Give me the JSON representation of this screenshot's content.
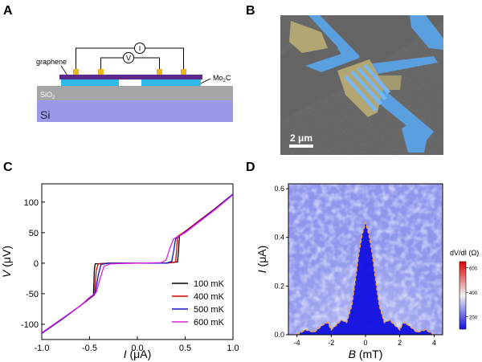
{
  "panels": {
    "a": {
      "letter": "A",
      "labels": {
        "graphene": "graphene",
        "mo2c_base": "Mo",
        "mo2c_sub": "2",
        "mo2c_tail": "C",
        "sio2_base": "SiO",
        "sio2_sub": "2",
        "si": "Si",
        "current_meter": "I",
        "voltage_meter": "V"
      },
      "colors": {
        "graphene_layer": "#5b2a8c",
        "mo2c_layer": "#2fb8e8",
        "contacts": "#f3b31b",
        "sio2": "#a6a6a6",
        "si": "#9a9ae8"
      }
    },
    "b": {
      "letter": "B",
      "scalebar": "2 μm",
      "colors": {
        "background": "#5a5a5a",
        "electrodes": "#5aa0e0",
        "flake": "#b3a672"
      }
    },
    "d": {
      "letter": "D",
      "colorbar_title": "dV/dI (Ω)",
      "colorbar_ticks": [
        "600",
        "400",
        "200"
      ],
      "colors": {
        "high": "#e00000",
        "mid": "#f2f2f2",
        "low": "#1010e0",
        "boundary": "#f0a040"
      }
    }
  },
  "chart_data": [
    {
      "panel": "C",
      "type": "line",
      "xlabel_sym": "I",
      "xlabel_unit": " (μA)",
      "ylabel_sym": "V",
      "ylabel_unit": " (μV)",
      "xlim": [
        -1.0,
        1.0
      ],
      "ylim": [
        -125,
        130
      ],
      "xticks": [
        -1.0,
        -0.5,
        0.0,
        0.5,
        1.0
      ],
      "xtick_labels": [
        "-1.0",
        "-0.5",
        "0.0",
        "0.5",
        "1.0"
      ],
      "yticks": [
        -100,
        -50,
        0,
        50,
        100
      ],
      "ytick_labels": [
        "-100",
        "-50",
        "0",
        "50",
        "100"
      ],
      "legend_position": "bottom-right",
      "series": [
        {
          "name": "100 mK",
          "color": "#000000",
          "x": [
            -1.0,
            -0.8,
            -0.6,
            -0.5,
            -0.46,
            -0.45,
            -0.44,
            -0.3,
            0.0,
            0.3,
            0.42,
            0.43,
            0.44,
            0.5,
            0.6,
            0.8,
            1.0
          ],
          "y": [
            -115,
            -93,
            -70,
            -58,
            -52,
            -10,
            -1,
            0,
            0,
            0,
            2,
            20,
            45,
            52,
            64,
            88,
            113
          ]
        },
        {
          "name": "400 mK",
          "color": "#d80000",
          "x": [
            -1.0,
            -0.8,
            -0.6,
            -0.5,
            -0.45,
            -0.43,
            -0.41,
            -0.3,
            0.0,
            0.3,
            0.4,
            0.41,
            0.42,
            0.5,
            0.6,
            0.8,
            1.0
          ],
          "y": [
            -115,
            -93,
            -70,
            -58,
            -52,
            -12,
            -1,
            0,
            0,
            0,
            2,
            20,
            44,
            52,
            64,
            88,
            113
          ]
        },
        {
          "name": "500 mK",
          "color": "#1010c8",
          "x": [
            -1.0,
            -0.8,
            -0.6,
            -0.5,
            -0.44,
            -0.41,
            -0.38,
            -0.3,
            0.0,
            0.3,
            0.36,
            0.38,
            0.4,
            0.5,
            0.6,
            0.8,
            1.0
          ],
          "y": [
            -115,
            -93,
            -70,
            -57,
            -50,
            -20,
            -2,
            0,
            0,
            0,
            3,
            20,
            40,
            51,
            63,
            87,
            113
          ]
        },
        {
          "name": "600 mK",
          "color": "#e020e0",
          "x": [
            -1.0,
            -0.8,
            -0.6,
            -0.5,
            -0.43,
            -0.39,
            -0.35,
            -0.28,
            0.0,
            0.25,
            0.3,
            0.34,
            0.38,
            0.5,
            0.6,
            0.8,
            1.0
          ],
          "y": [
            -114,
            -92,
            -70,
            -56,
            -48,
            -25,
            -5,
            -1,
            0,
            1,
            5,
            25,
            40,
            50,
            62,
            86,
            112
          ]
        }
      ]
    },
    {
      "panel": "D",
      "type": "heatmap",
      "xlabel_sym": "B",
      "xlabel_unit": " (mT)",
      "ylabel_sym": "I",
      "ylabel_unit": " (μA)",
      "xlim": [
        -4.5,
        4.5
      ],
      "ylim": [
        0.0,
        0.62
      ],
      "xticks": [
        -4,
        -2,
        0,
        2,
        4
      ],
      "xtick_labels": [
        "-4",
        "-2",
        "0",
        "2",
        "4"
      ],
      "yticks": [
        0.0,
        0.2,
        0.4,
        0.6
      ],
      "ytick_labels": [
        "0.0",
        "0.2",
        "0.4",
        "0.6"
      ],
      "colorbar_range": [
        100,
        650
      ],
      "critical_current_boundary": {
        "B": [
          -4.0,
          -3.5,
          -3.0,
          -2.5,
          -2.2,
          -2.0,
          -1.7,
          -1.4,
          -1.1,
          -0.8,
          -0.6,
          -0.4,
          -0.2,
          0.0,
          0.2,
          0.4,
          0.6,
          0.8,
          1.1,
          1.4,
          1.7,
          2.0,
          2.2,
          2.5,
          3.0,
          3.5,
          4.0
        ],
        "I": [
          0.0,
          0.02,
          0.01,
          0.04,
          0.05,
          0.02,
          0.04,
          0.06,
          0.05,
          0.12,
          0.22,
          0.33,
          0.41,
          0.46,
          0.41,
          0.33,
          0.22,
          0.12,
          0.05,
          0.06,
          0.04,
          0.02,
          0.05,
          0.04,
          0.01,
          0.02,
          0.0
        ]
      }
    }
  ]
}
